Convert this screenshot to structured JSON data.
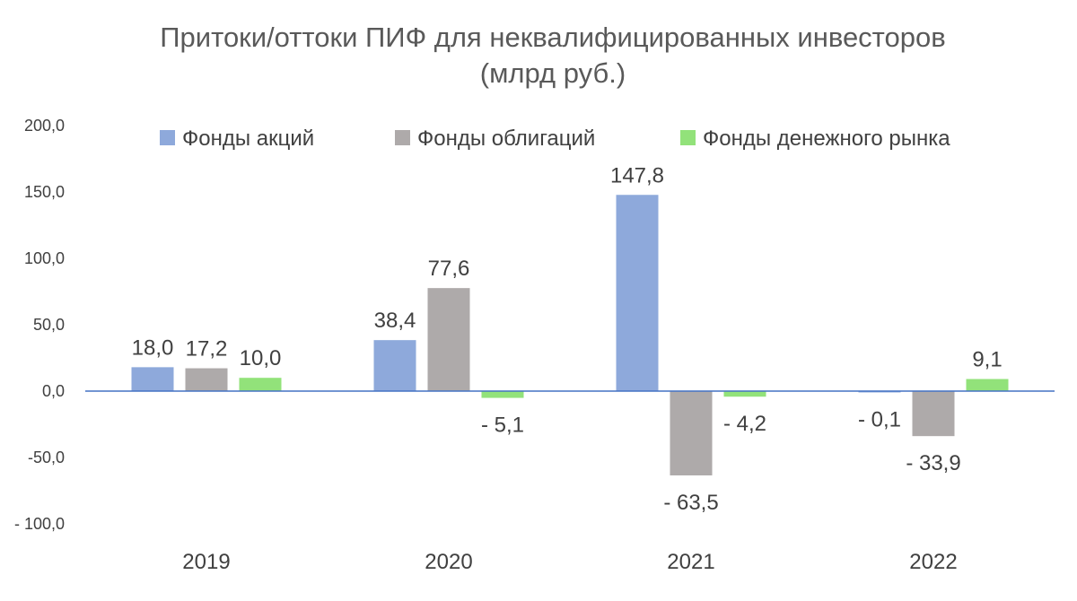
{
  "chart_data": {
    "type": "bar",
    "title": "Притоки/оттоки ПИФ для неквалифицированных инвесторов",
    "subtitle": "(млрд руб.)",
    "categories": [
      "2019",
      "2020",
      "2021",
      "2022"
    ],
    "series": [
      {
        "name": "Фонды акций",
        "color": "#8EA9DB",
        "values": [
          18.0,
          38.4,
          147.8,
          -0.1
        ],
        "labels": [
          "18,0",
          "38,4",
          "147,8",
          "- 0,1"
        ]
      },
      {
        "name": "Фонды облигаций",
        "color": "#AEAAAA",
        "values": [
          17.2,
          77.6,
          -63.5,
          -33.9
        ],
        "labels": [
          "17,2",
          "77,6",
          "- 63,5",
          "- 33,9"
        ]
      },
      {
        "name": "Фонды денежного рынка",
        "color": "#92E27A",
        "values": [
          10.0,
          -5.1,
          -4.2,
          9.1
        ],
        "labels": [
          "10,0",
          "- 5,1",
          "- 4,2",
          "9,1"
        ]
      }
    ],
    "ylim": [
      -100,
      200
    ],
    "yticks": [
      200,
      150,
      100,
      50,
      0,
      -50,
      -100
    ],
    "ytick_labels": [
      "200,0",
      "150,0",
      "100,0",
      "50,0",
      "0,0",
      "-50,0",
      "- 100,0"
    ],
    "xlabel": "",
    "ylabel": "",
    "grid": false,
    "legend_position": "top",
    "axis_color": "#4472C4"
  }
}
